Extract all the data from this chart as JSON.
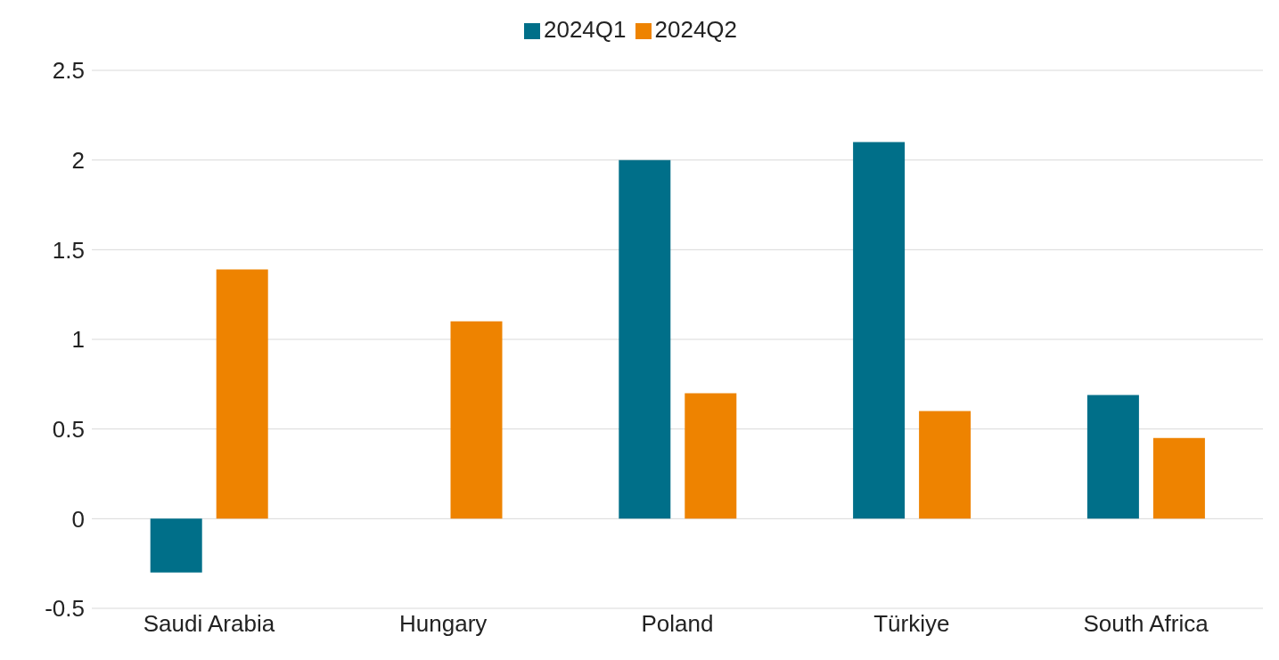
{
  "chart_data": {
    "type": "bar",
    "categories": [
      "Saudi Arabia",
      "Hungary",
      "Poland",
      "Türkiye",
      "South Africa"
    ],
    "series": [
      {
        "name": "2024Q1",
        "color": "#006f89",
        "values": [
          -0.3,
          null,
          2.0,
          2.1,
          0.69
        ]
      },
      {
        "name": "2024Q2",
        "color": "#ee8300",
        "values": [
          1.39,
          1.1,
          0.7,
          0.6,
          0.45
        ]
      }
    ],
    "ylim": [
      -0.5,
      2.5
    ],
    "yticks": [
      -0.5,
      0,
      0.5,
      1,
      1.5,
      2,
      2.5
    ],
    "grid": "y",
    "legend": "top"
  }
}
